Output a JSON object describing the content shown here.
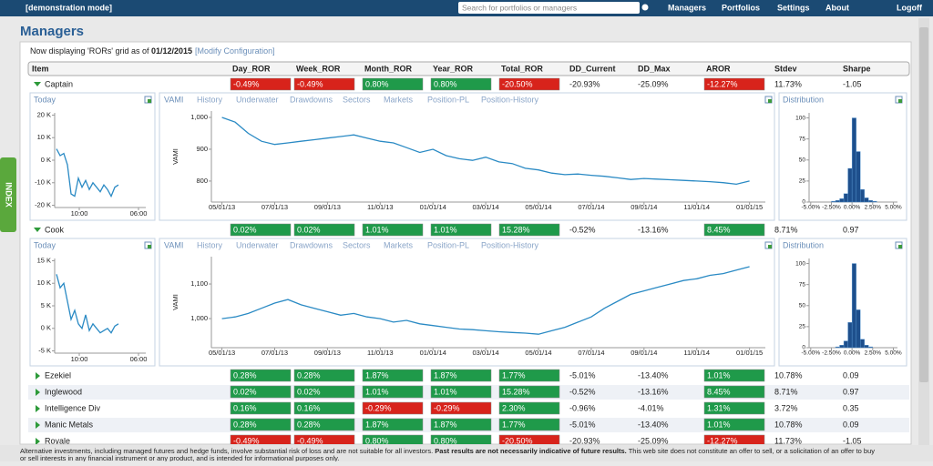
{
  "header": {
    "mode": "[demonstration mode]",
    "search_placeholder": "Search for portfolios or managers",
    "nav": [
      "Managers",
      "Portfolios",
      "Settings",
      "About",
      "Logoff"
    ]
  },
  "side_tab": "INDEX",
  "title": "Managers",
  "status": {
    "prefix": "Now displaying 'RORs' grid as of ",
    "date": "01/12/2015",
    "link": "[Modify Configuration]"
  },
  "table": {
    "columns": [
      "Item",
      "Day_ROR",
      "Week_ROR",
      "Month_ROR",
      "Year_ROR",
      "Total_ROR",
      "DD_Current",
      "DD_Max",
      "AROR",
      "Stdev",
      "Sharpe"
    ],
    "rows": [
      {
        "name": "Captain",
        "cells": [
          "-0.49%",
          "-0.49%",
          "0.80%",
          "0.80%",
          "-20.50%",
          "-20.93%",
          "-25.09%",
          "-12.27%",
          "11.73%",
          "-1.05"
        ],
        "details": {
          "today": {
            "title": "Today",
            "x": [
              1,
              3,
              5,
              7,
              9,
              11,
              13,
              15,
              17,
              19,
              21,
              23,
              25,
              27,
              29,
              31,
              33,
              35
            ],
            "values": [
              5000,
              2000,
              3000,
              -2000,
              -15000,
              -16000,
              -8000,
              -12000,
              -9000,
              -13000,
              -10000,
              -12000,
              -14000,
              -11000,
              -13000,
              -16000,
              -12000,
              -11000
            ],
            "xlim": [
              0,
              50
            ],
            "ylim": [
              -21000,
              21000
            ],
            "xticks": [
              {
                "value": 13.5,
                "label": "10:00"
              },
              {
                "value": 46,
                "label": "06:00"
              }
            ],
            "yticks": [
              {
                "value": 20000,
                "label": "20 K"
              },
              {
                "value": 10000,
                "label": "10 K"
              },
              {
                "value": 0,
                "label": "0 K"
              },
              {
                "value": -10000,
                "label": "-10 K"
              },
              {
                "value": -20000,
                "label": "-20 K"
              }
            ]
          },
          "vami": {
            "title": "VAMI",
            "tabs": [
              "History",
              "Underwater",
              "Drawdowns",
              "Sectors",
              "Markets",
              "Position-PL",
              "Position-History"
            ],
            "ylabel": "VAMI",
            "values": [
              1000,
              985,
              950,
              925,
              915,
              920,
              925,
              930,
              935,
              940,
              945,
              935,
              925,
              920,
              905,
              890,
              900,
              880,
              870,
              865,
              875,
              860,
              855,
              840,
              835,
              825,
              820,
              822,
              818,
              815,
              810,
              805,
              808,
              806,
              804,
              802,
              800,
              798,
              795,
              790,
              800
            ],
            "xlim": [
              -0.8,
              41.2
            ],
            "ylim": [
              734,
              1020
            ],
            "xticks": [
              {
                "value": 0,
                "label": "05/01/13"
              },
              {
                "value": 4,
                "label": "07/01/13"
              },
              {
                "value": 8,
                "label": "09/01/13"
              },
              {
                "value": 12,
                "label": "11/01/13"
              },
              {
                "value": 16,
                "label": "01/01/14"
              },
              {
                "value": 20,
                "label": "03/01/14"
              },
              {
                "value": 24,
                "label": "05/01/14"
              },
              {
                "value": 28,
                "label": "07/01/14"
              },
              {
                "value": 32,
                "label": "09/01/14"
              },
              {
                "value": 36,
                "label": "11/01/14"
              },
              {
                "value": 40,
                "label": "01/01/15"
              }
            ],
            "yticks": [
              {
                "value": 1000,
                "label": "1,000"
              },
              900,
              800
            ]
          },
          "distribution": {
            "title": "Distribution",
            "bins": [
              -5,
              -4.5,
              -4,
              -3.5,
              -3,
              -2.5,
              -2,
              -1.5,
              -1,
              -0.5,
              0,
              0.5,
              1,
              1.5,
              2,
              2.5,
              3,
              3.5,
              4,
              4.5,
              5
            ],
            "counts": [
              0,
              0,
              0,
              0,
              0,
              1,
              2,
              4,
              10,
              40,
              100,
              60,
              15,
              5,
              2,
              1,
              0,
              0,
              0,
              0
            ],
            "xlim": [
              -5.2,
              5.5
            ],
            "ylim": [
              0,
              106
            ],
            "xticks": [
              {
                "value": -5,
                "label": "-5.00%"
              },
              {
                "value": -2.5,
                "label": "-2.50%"
              },
              {
                "value": 0,
                "label": "0.00%"
              },
              {
                "value": 2.5,
                "label": "2.50%"
              },
              {
                "value": 5,
                "label": "5.00%"
              }
            ],
            "yticks": [
              100,
              75,
              50,
              25,
              0
            ]
          }
        }
      },
      {
        "name": "Cook",
        "cells": [
          "0.02%",
          "0.02%",
          "1.01%",
          "1.01%",
          "15.28%",
          "-0.52%",
          "-13.16%",
          "8.45%",
          "8.71%",
          "0.97"
        ],
        "details": {
          "today": {
            "title": "Today",
            "x": [
              1,
              3,
              5,
              7,
              9,
              11,
              13,
              15,
              17,
              19,
              21,
              23,
              25,
              27,
              29,
              31,
              33,
              35
            ],
            "values": [
              12000,
              9000,
              10000,
              6000,
              2000,
              4000,
              1000,
              0,
              3000,
              -500,
              1000,
              0,
              -1000,
              -500,
              0,
              -1000,
              500,
              1000
            ],
            "xlim": [
              0,
              50
            ],
            "ylim": [
              -5500,
              15500
            ],
            "xticks": [
              {
                "value": 13.5,
                "label": "10:00"
              },
              {
                "value": 46,
                "label": "06:00"
              }
            ],
            "yticks": [
              {
                "value": 15000,
                "label": "15 K"
              },
              {
                "value": 10000,
                "label": "10 K"
              },
              {
                "value": 5000,
                "label": "5 K"
              },
              {
                "value": 0,
                "label": "0 K"
              },
              {
                "value": -5000,
                "label": "-5 K"
              }
            ]
          },
          "vami": {
            "title": "VAMI",
            "tabs": [
              "History",
              "Underwater",
              "Drawdowns",
              "Sectors",
              "Markets",
              "Position-PL",
              "Position-History"
            ],
            "ylabel": "VAMI",
            "values": [
              1000,
              1005,
              1015,
              1030,
              1045,
              1055,
              1040,
              1030,
              1020,
              1010,
              1015,
              1005,
              1000,
              990,
              995,
              985,
              980,
              975,
              970,
              968,
              965,
              962,
              960,
              958,
              955,
              965,
              975,
              990,
              1005,
              1030,
              1050,
              1070,
              1080,
              1090,
              1100,
              1110,
              1115,
              1125,
              1130,
              1140,
              1150
            ],
            "xlim": [
              -0.8,
              41.2
            ],
            "ylim": [
              916,
              1179
            ],
            "xticks": [
              {
                "value": 0,
                "label": "05/01/13"
              },
              {
                "value": 4,
                "label": "07/01/13"
              },
              {
                "value": 8,
                "label": "09/01/13"
              },
              {
                "value": 12,
                "label": "11/01/13"
              },
              {
                "value": 16,
                "label": "01/01/14"
              },
              {
                "value": 20,
                "label": "03/01/14"
              },
              {
                "value": 24,
                "label": "05/01/14"
              },
              {
                "value": 28,
                "label": "07/01/14"
              },
              {
                "value": 32,
                "label": "09/01/14"
              },
              {
                "value": 36,
                "label": "11/01/14"
              },
              {
                "value": 40,
                "label": "01/01/15"
              }
            ],
            "yticks": [
              {
                "value": 1100,
                "label": "1,100"
              },
              {
                "value": 1000,
                "label": "1,000"
              }
            ]
          },
          "distribution": {
            "title": "Distribution",
            "bins": [
              -5,
              -4.5,
              -4,
              -3.5,
              -3,
              -2.5,
              -2,
              -1.5,
              -1,
              -0.5,
              0,
              0.5,
              1,
              1.5,
              2,
              2.5,
              3,
              3.5,
              4,
              4.5,
              5
            ],
            "counts": [
              0,
              0,
              0,
              0,
              0,
              0,
              1,
              3,
              8,
              30,
              100,
              45,
              10,
              3,
              1,
              0,
              0,
              0,
              0,
              0
            ],
            "xlim": [
              -5.2,
              5.5
            ],
            "ylim": [
              0,
              106
            ],
            "xticks": [
              {
                "value": -5,
                "label": "-5.00%"
              },
              {
                "value": -2.5,
                "label": "-2.50%"
              },
              {
                "value": 0,
                "label": "0.00%"
              },
              {
                "value": 2.5,
                "label": "2.50%"
              },
              {
                "value": 5,
                "label": "5.00%"
              }
            ],
            "yticks": [
              100,
              75,
              50,
              25,
              0
            ]
          }
        }
      },
      {
        "name": "Ezekiel",
        "cells": [
          "0.28%",
          "0.28%",
          "1.87%",
          "1.87%",
          "1.77%",
          "-5.01%",
          "-13.40%",
          "1.01%",
          "10.78%",
          "0.09"
        ]
      },
      {
        "name": "Inglewood",
        "cells": [
          "0.02%",
          "0.02%",
          "1.01%",
          "1.01%",
          "15.28%",
          "-0.52%",
          "-13.16%",
          "8.45%",
          "8.71%",
          "0.97"
        ]
      },
      {
        "name": "Intelligence Div",
        "cells": [
          "0.16%",
          "0.16%",
          "-0.29%",
          "-0.29%",
          "2.30%",
          "-0.96%",
          "-4.01%",
          "1.31%",
          "3.72%",
          "0.35"
        ]
      },
      {
        "name": "Manic Metals",
        "cells": [
          "0.28%",
          "0.28%",
          "1.87%",
          "1.87%",
          "1.77%",
          "-5.01%",
          "-13.40%",
          "1.01%",
          "10.78%",
          "0.09"
        ]
      },
      {
        "name": "Royale",
        "cells": [
          "-0.49%",
          "-0.49%",
          "0.80%",
          "0.80%",
          "-20.50%",
          "-20.93%",
          "-25.09%",
          "-12.27%",
          "11.73%",
          "-1.05"
        ]
      }
    ]
  },
  "footer": {
    "text1": "Alternative investments, including managed futures and hedge funds, involve substantial risk of loss and are not suitable for all investors. ",
    "bold": "Past results are not necessarily indicative of future results.",
    "text2": " This web site does not constitute an offer to sell, or a solicitation of an offer to buy",
    "line2": "or sell interests in any financial instrument or any product, and is intended for informational purposes only."
  }
}
